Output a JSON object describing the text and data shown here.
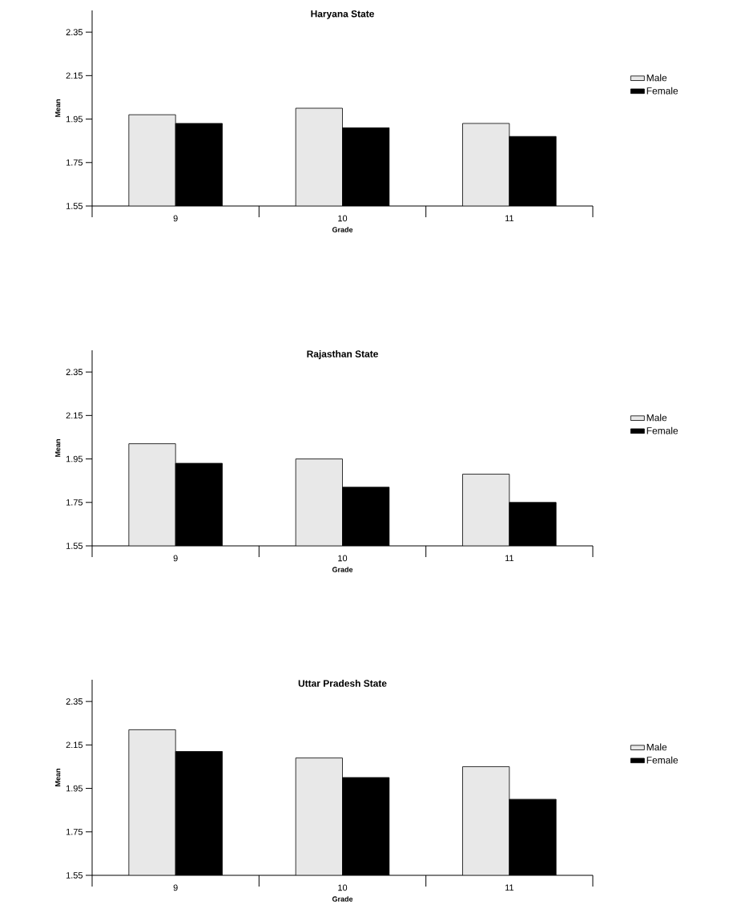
{
  "chart_data": [
    {
      "type": "bar",
      "title": "Haryana State",
      "xlabel": "Grade",
      "ylabel": "Mean",
      "categories": [
        "9",
        "10",
        "11"
      ],
      "series": [
        {
          "name": "Male",
          "color": "#e8e8e8",
          "values": [
            1.97,
            2.0,
            1.93
          ]
        },
        {
          "name": "Female",
          "color": "#000000",
          "values": [
            1.93,
            1.91,
            1.87
          ]
        }
      ],
      "ylim": [
        1.55,
        2.45
      ],
      "yticks": [
        1.55,
        1.75,
        1.95,
        2.15,
        2.35
      ],
      "legend": "right"
    },
    {
      "type": "bar",
      "title": "Rajasthan State",
      "xlabel": "Grade",
      "ylabel": "Mean",
      "categories": [
        "9",
        "10",
        "11"
      ],
      "series": [
        {
          "name": "Male",
          "color": "#e8e8e8",
          "values": [
            2.02,
            1.95,
            1.88
          ]
        },
        {
          "name": "Female",
          "color": "#000000",
          "values": [
            1.93,
            1.82,
            1.75
          ]
        }
      ],
      "ylim": [
        1.55,
        2.45
      ],
      "yticks": [
        1.55,
        1.75,
        1.95,
        2.15,
        2.35
      ],
      "legend": "right"
    },
    {
      "type": "bar",
      "title": "Uttar Pradesh State",
      "xlabel": "Grade",
      "ylabel": "Mean",
      "categories": [
        "9",
        "10",
        "11"
      ],
      "series": [
        {
          "name": "Male",
          "color": "#e8e8e8",
          "values": [
            2.22,
            2.09,
            2.05
          ]
        },
        {
          "name": "Female",
          "color": "#000000",
          "values": [
            2.12,
            2.0,
            1.9
          ]
        }
      ],
      "ylim": [
        1.55,
        2.45
      ],
      "yticks": [
        1.55,
        1.75,
        1.95,
        2.15,
        2.35
      ],
      "legend": "right"
    }
  ]
}
